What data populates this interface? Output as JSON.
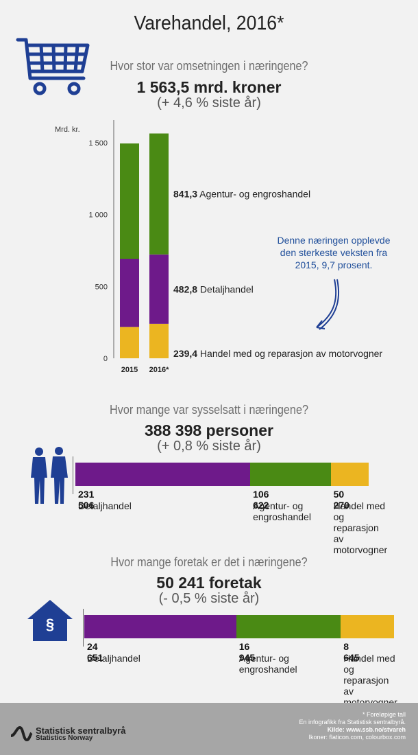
{
  "title": "Varehandel, 2016*",
  "section1": {
    "question": "Hvor stor var omsetningen i næringene?",
    "headline": "1 563,5 mrd. kroner",
    "change": "(+ 4,6 % siste år)",
    "note": "Denne næringen opplevde den sterkeste veksten fra 2015, 9,7 prosent."
  },
  "section2": {
    "question": "Hvor mange var sysselsatt i næringene?",
    "headline": "388 398 personer",
    "change": "(+ 0,8 % siste år)"
  },
  "section3": {
    "question": "Hvor mange foretak er det i næringene?",
    "headline": "50 241 foretak",
    "change": "(- 0,5 % siste år)"
  },
  "colors": {
    "purple": "#6e1a8a",
    "green": "#4a8a14",
    "yellow": "#ebb521",
    "blue": "#1f3f94"
  },
  "icons": {
    "cart": "shopping-cart-icon",
    "people": "people-icon",
    "house": "house-paragraph-icon",
    "logo": "ssb-logo-icon"
  },
  "chart_data": [
    {
      "type": "bar",
      "stacked": true,
      "ylabel": "Mrd. kr.",
      "ylim": [
        0,
        1600
      ],
      "yticks": [
        "0",
        "500",
        "1 000",
        "1 500"
      ],
      "ytick_values": [
        0,
        500,
        1000,
        1500
      ],
      "categories": [
        "2015",
        "2016*"
      ],
      "series": [
        {
          "name": "Handel med og reparasjon av motorvogner",
          "values": [
            218.2,
            239.4
          ],
          "color": "#ebb521",
          "label": "239,4"
        },
        {
          "name": "Detaljhandel",
          "values": [
            474.0,
            482.8
          ],
          "color": "#6e1a8a",
          "label": "482,8"
        },
        {
          "name": "Agentur- og engroshandel",
          "values": [
            802.0,
            841.3
          ],
          "color": "#4a8a14",
          "label": "841,3"
        }
      ]
    },
    {
      "type": "bar",
      "orientation": "horizontal",
      "stacked": true,
      "total": 388398,
      "segments": [
        {
          "value": 231506,
          "value_label": "231 506",
          "lines": [
            "Detaljhandel"
          ],
          "color": "#6e1a8a"
        },
        {
          "value": 106622,
          "value_label": "106 622",
          "lines": [
            "Agentur- og",
            "engroshandel"
          ],
          "color": "#4a8a14"
        },
        {
          "value": 50270,
          "value_label": "50 270",
          "lines": [
            "Handel med og",
            "reparasjon av",
            "motorvogner"
          ],
          "color": "#ebb521"
        }
      ]
    },
    {
      "type": "bar",
      "orientation": "horizontal",
      "stacked": true,
      "total": 50241,
      "segments": [
        {
          "value": 24651,
          "value_label": "24 651",
          "lines": [
            "Detaljhandel"
          ],
          "color": "#6e1a8a"
        },
        {
          "value": 16945,
          "value_label": "16 945",
          "lines": [
            "Agentur- og",
            "engroshandel"
          ],
          "color": "#4a8a14"
        },
        {
          "value": 8645,
          "value_label": "8 645",
          "lines": [
            "Handel med og",
            "reparasjon av",
            "motorvogner"
          ],
          "color": "#ebb521"
        }
      ]
    }
  ],
  "footer": {
    "note": "* Foreløpige tall",
    "line1": "En infografikk fra Statistisk sentralbyrå.",
    "source": "Kilde: www.ssb.no/stvareh",
    "credits": "Ikoner: flaticon.com, colourbox.com",
    "org_name": "Statistisk sentralbyrå",
    "org_name_en": "Statistics Norway"
  }
}
